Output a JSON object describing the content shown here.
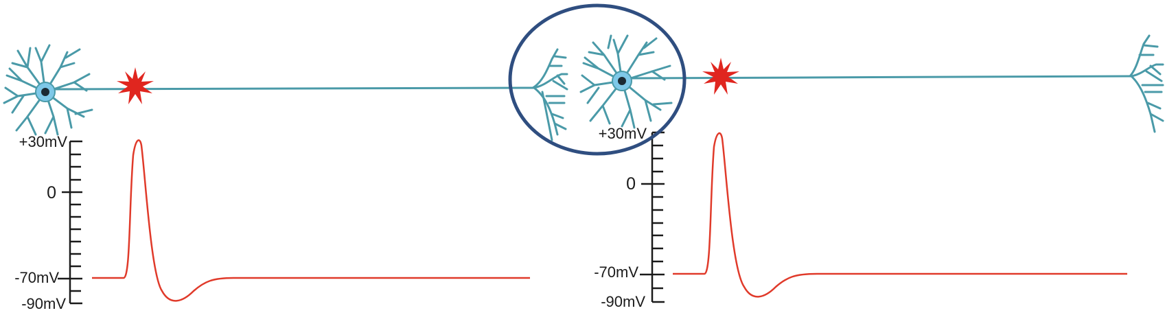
{
  "figure": {
    "panels": [
      {
        "id": "left",
        "scale": {
          "top": "+30mV",
          "zero": "0",
          "rest": "-70mV",
          "bottom": "-90mV"
        }
      },
      {
        "id": "right",
        "scale": {
          "top": "+30mV",
          "zero": "0",
          "rest": "-70mV",
          "bottom": "-90mV"
        }
      }
    ],
    "colors": {
      "neuron": "#4a9aa8",
      "soma": "#7ec8e8",
      "nucleus": "#1b2a33",
      "stimulus": "#e0261f",
      "trace": "#e03a2a",
      "highlight_ring": "#2f4e80"
    },
    "highlight": "circle around the axon terminal of the first neuron and the second neuron's cell body"
  },
  "chart_data": [
    {
      "type": "line",
      "ylabel": "",
      "yticks": [
        "+30mV",
        "0",
        "-70mV",
        "-90mV"
      ],
      "ylim": [
        -90,
        30
      ],
      "series": [
        {
          "points_mV": [
            -70,
            -70,
            30,
            30,
            -70,
            -90,
            -80,
            -70,
            -70
          ]
        }
      ]
    },
    {
      "type": "line",
      "ylabel": "",
      "yticks": [
        "+30mV",
        "0",
        "-70mV",
        "-90mV"
      ],
      "ylim": [
        -90,
        30
      ],
      "series": [
        {
          "points_mV": [
            -70,
            -70,
            30,
            30,
            -70,
            -90,
            -80,
            -70,
            -70
          ]
        }
      ]
    }
  ]
}
